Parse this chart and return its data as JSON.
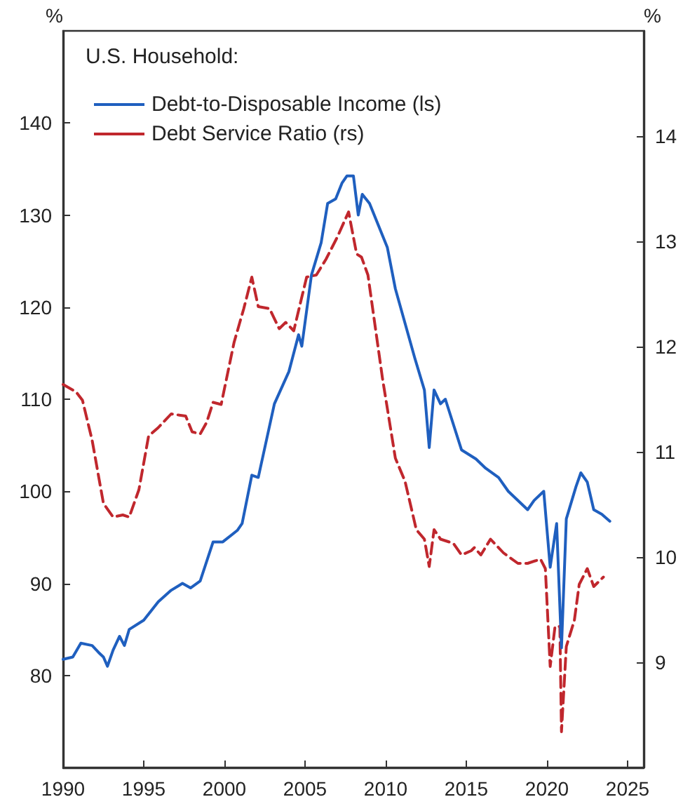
{
  "chart_data": {
    "type": "line",
    "legend_title": "U.S. Household:",
    "ylabel": "%",
    "y2label": "%",
    "xlim": [
      1990,
      2026
    ],
    "xticks": [
      1990,
      1995,
      2000,
      2005,
      2010,
      2015,
      2020,
      2025
    ],
    "ylim": [
      70,
      150
    ],
    "yticks": [
      80,
      90,
      100,
      110,
      120,
      130,
      140
    ],
    "y2lim": [
      8,
      15
    ],
    "y2ticks": [
      9,
      10,
      11,
      12,
      13,
      14
    ],
    "grid": false,
    "legend": "top left",
    "marker": "none",
    "series": [
      {
        "name": "Debt-to-Disposable Income (ls)",
        "color": "#1f5fbf",
        "line_style": "solid",
        "x": [
          1990.0,
          1990.6,
          1991.1,
          1991.8,
          1992.2,
          1992.5,
          1992.75,
          1993.1,
          1993.5,
          1993.8,
          1994.1,
          1995.0,
          1995.9,
          1996.7,
          1997.4,
          1997.9,
          1998.5,
          1999.3,
          1999.9,
          2000.8,
          2001.1,
          2001.7,
          2002.1,
          2003.1,
          2004.0,
          2004.6,
          2004.8,
          2005.4,
          2006.0,
          2006.4,
          2006.9,
          2007.3,
          2007.6,
          2008.0,
          2008.3,
          2008.55,
          2009.0,
          2010.1,
          2010.6,
          2011.8,
          2012.4,
          2012.7,
          2013.0,
          2013.4,
          2013.7,
          2014.7,
          2015.6,
          2016.2,
          2017.0,
          2017.6,
          2018.8,
          2019.2,
          2019.8,
          2020.2,
          2020.6,
          2020.9,
          2021.2,
          2021.8,
          2022.1,
          2022.5,
          2022.9,
          2023.4,
          2023.9
        ],
        "values": [
          81.75,
          82,
          83.5,
          83.25,
          82.5,
          82,
          81,
          82.75,
          84.25,
          83.25,
          85,
          86,
          88,
          89.25,
          90,
          89.5,
          90.25,
          94.5,
          94.5,
          95.75,
          96.5,
          101.75,
          101.5,
          109.5,
          113,
          117,
          115.75,
          123.5,
          127,
          131.25,
          131.75,
          133.5,
          134.25,
          134.25,
          130,
          132.25,
          131.25,
          126.5,
          122,
          114.5,
          111,
          104.75,
          111,
          109.5,
          110,
          104.5,
          103.5,
          102.5,
          101.5,
          100,
          98,
          99,
          100,
          91.75,
          96.5,
          83,
          97,
          100.5,
          102,
          101,
          98,
          97.5,
          96.75
        ]
      },
      {
        "name": "Debt Service Ratio (rs)",
        "color": "#c0272d",
        "line_style": "dashed",
        "axis": "y2",
        "x": [
          1990.0,
          1990.8,
          1991.2,
          1991.8,
          1992.5,
          1993.1,
          1993.7,
          1994.1,
          1994.7,
          1995.3,
          1995.9,
          1996.7,
          1997.6,
          1998.0,
          1998.5,
          1998.9,
          1999.3,
          1999.8,
          2000.6,
          2001.2,
          2001.7,
          2002.1,
          2002.8,
          2003.4,
          2003.8,
          2004.3,
          2004.8,
          2005.1,
          2005.7,
          2006.3,
          2007.0,
          2007.7,
          2008.2,
          2008.5,
          2008.9,
          2009.8,
          2010.6,
          2011.2,
          2011.9,
          2012.4,
          2012.7,
          2013.0,
          2013.4,
          2014.2,
          2014.7,
          2015.3,
          2015.5,
          2015.9,
          2016.5,
          2017.3,
          2018.2,
          2018.8,
          2019.6,
          2019.9,
          2020.2,
          2020.5,
          2020.8,
          2020.9,
          2021.2,
          2021.7,
          2022.0,
          2022.5,
          2022.9,
          2023.5
        ],
        "values": [
          11.64,
          11.57,
          11.49,
          11.11,
          10.51,
          10.38,
          10.4,
          10.38,
          10.64,
          11.15,
          11.23,
          11.36,
          11.34,
          11.19,
          11.17,
          11.28,
          11.47,
          11.45,
          12.04,
          12.36,
          12.66,
          12.38,
          12.36,
          12.17,
          12.23,
          12.15,
          12.47,
          12.66,
          12.68,
          12.83,
          13.04,
          13.28,
          12.88,
          12.85,
          12.68,
          11.7,
          10.94,
          10.72,
          10.26,
          10.17,
          9.91,
          10.26,
          10.17,
          10.13,
          10.02,
          10.06,
          10.09,
          10.02,
          10.17,
          10.04,
          9.94,
          9.94,
          9.98,
          9.89,
          8.96,
          9.34,
          9.34,
          8.34,
          9.15,
          9.4,
          9.74,
          9.89,
          9.72,
          9.81
        ]
      }
    ]
  }
}
